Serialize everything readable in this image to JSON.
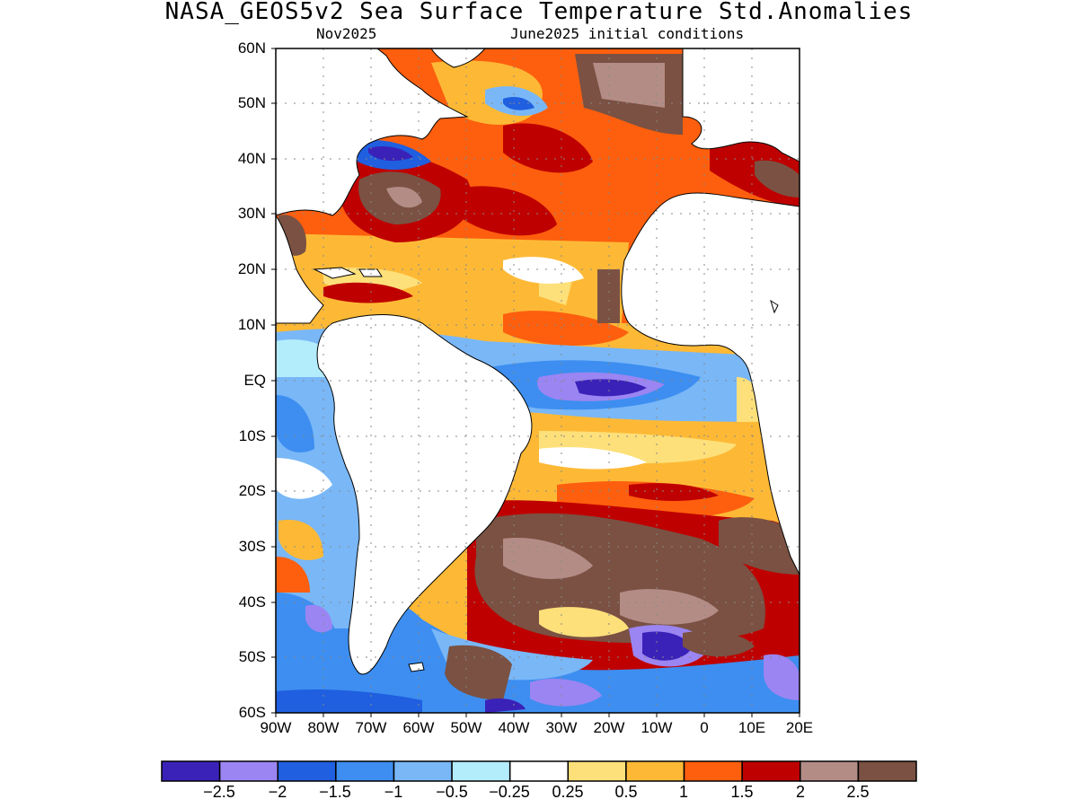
{
  "title": "NASA_GEOS5v2 Sea Surface Temperature Std.Anomalies",
  "subtitle_left": "Nov2025",
  "subtitle_right": "June2025 initial conditions",
  "lat_labels": [
    "60N",
    "50N",
    "40N",
    "30N",
    "20N",
    "10N",
    "EQ",
    "10S",
    "20S",
    "30S",
    "40S",
    "50S",
    "60S"
  ],
  "lon_labels": [
    "90W",
    "80W",
    "70W",
    "60W",
    "50W",
    "40W",
    "30W",
    "20W",
    "10W",
    "0",
    "10E",
    "20E"
  ],
  "colorbar": {
    "colors": [
      "#3a22b8",
      "#9b85f2",
      "#1f5fe0",
      "#3d8ef0",
      "#79b7f7",
      "#b3ecfb",
      "#ffffff",
      "#fde07a",
      "#fdb936",
      "#fd5f0e",
      "#bf0000",
      "#b48c86",
      "#7a5142"
    ],
    "labels": [
      "−2.5",
      "−2",
      "−1.5",
      "−1",
      "−0.5",
      "−0.25",
      "0.25",
      "0.5",
      "1",
      "1.5",
      "2",
      "2.5"
    ]
  },
  "chart_data": {
    "type": "heatmap",
    "title": "NASA_GEOS5v2 Sea Surface Temperature Std.Anomalies",
    "subtitle": [
      "Nov2025",
      "June2025 initial conditions"
    ],
    "xlim": [
      -90,
      20
    ],
    "ylim": [
      -60,
      60
    ],
    "x_ticks": [
      "90W",
      "80W",
      "70W",
      "60W",
      "50W",
      "40W",
      "30W",
      "20W",
      "10W",
      "0",
      "10E",
      "20E"
    ],
    "y_ticks": [
      "60N",
      "50N",
      "40N",
      "30N",
      "20N",
      "10N",
      "EQ",
      "10S",
      "20S",
      "30S",
      "40S",
      "50S",
      "60S"
    ],
    "contour_levels": [
      -2.5,
      -2,
      -1.5,
      -1,
      -0.5,
      -0.25,
      0.25,
      0.5,
      1,
      1.5,
      2,
      2.5
    ],
    "grid": true,
    "regions": [
      {
        "lon": -45,
        "lat": 40,
        "value": 2.2
      },
      {
        "lon": -25,
        "lat": 50,
        "value": 1.6
      },
      {
        "lon": -60,
        "lat": 30,
        "value": 2.5
      },
      {
        "lon": -35,
        "lat": 25,
        "value": 1.6
      },
      {
        "lon": -40,
        "lat": 18,
        "value": 0.8
      },
      {
        "lon": -25,
        "lat": 10,
        "value": 1.3
      },
      {
        "lon": -70,
        "lat": 40,
        "value": -1.8
      },
      {
        "lon": -10,
        "lat": -2,
        "value": -1.2
      },
      {
        "lon": -15,
        "lat": -3,
        "value": -2.6
      },
      {
        "lon": -85,
        "lat": -10,
        "value": -0.9
      },
      {
        "lon": -15,
        "lat": -18,
        "value": 0.6
      },
      {
        "lon": -10,
        "lat": -35,
        "value": 2.5
      },
      {
        "lon": -35,
        "lat": -45,
        "value": 1.2
      },
      {
        "lon": -10,
        "lat": -50,
        "value": -2.1
      },
      {
        "lon": -55,
        "lat": -50,
        "value": -1.2
      }
    ]
  }
}
